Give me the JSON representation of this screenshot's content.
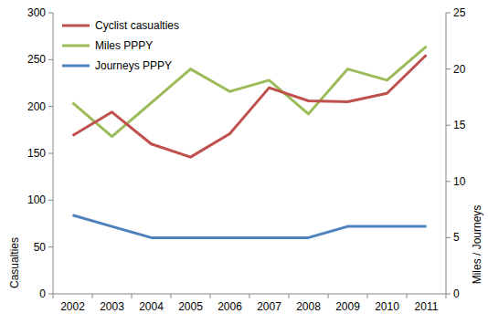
{
  "chart_data": {
    "type": "line",
    "categories": [
      "2002",
      "2003",
      "2004",
      "2005",
      "2006",
      "2007",
      "2008",
      "2009",
      "2010",
      "2011"
    ],
    "series": [
      {
        "name": "Cyclist casualties",
        "color": "#c0504d",
        "values": [
          169,
          194,
          160,
          146,
          171,
          220,
          206,
          205,
          214,
          255
        ]
      },
      {
        "name": "Miles PPPY",
        "color": "#9bbb59",
        "axis": "y2",
        "values": [
          17,
          14,
          17,
          20,
          18,
          19,
          16,
          20,
          19,
          22
        ]
      },
      {
        "name": "Journeys PPPY",
        "color": "#4f81bd",
        "axis": "y2",
        "values": [
          7,
          6,
          5,
          5,
          5,
          5,
          5,
          6,
          6,
          6
        ]
      }
    ],
    "y_label": "Casualties",
    "y2_label": "Miles / Journeys",
    "ylim": [
      0,
      300
    ],
    "yticks": [
      0,
      50,
      100,
      150,
      200,
      250,
      300
    ],
    "y2lim": [
      0,
      25
    ],
    "y2ticks": [
      0,
      5,
      10,
      15,
      20,
      25
    ],
    "grid": false,
    "legend": "upper left"
  }
}
